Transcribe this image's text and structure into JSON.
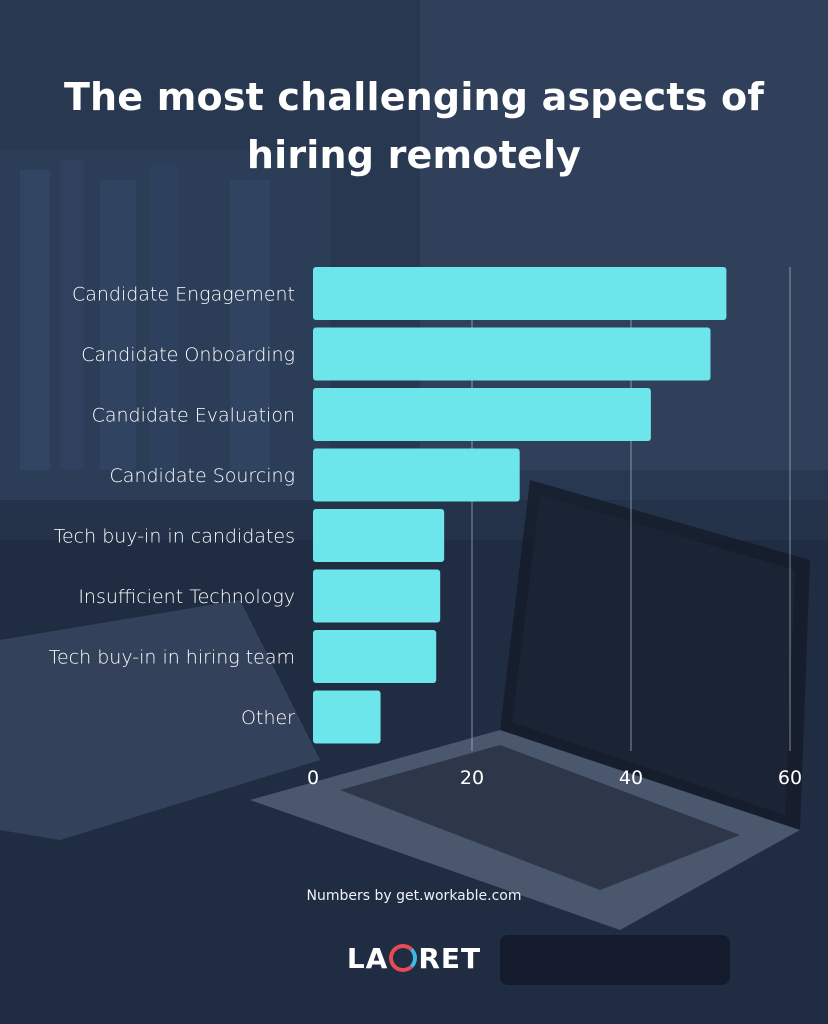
{
  "header": {
    "title_line1": "The most challenging aspects of",
    "title_line2": "hiring remotely"
  },
  "footer": {
    "source": "Numbers by get.workable.com",
    "logo_text": "LAGRET",
    "logo_prefix": "LA",
    "logo_suffix": "RET"
  },
  "colors": {
    "background": "#24324a",
    "bar": "#6ce6ea",
    "text": "#ffffff"
  },
  "chart_data": {
    "type": "bar",
    "orientation": "horizontal",
    "categories": [
      "Candidate Engagement",
      "Candidate Onboarding",
      "Candidate Evaluation",
      "Candidate Sourcing",
      "Tech buy-in in candidates",
      "Insufficient Technology",
      "Tech buy-in in hiring team",
      "Other"
    ],
    "values": [
      52,
      50,
      42.5,
      26,
      16.5,
      16,
      15.5,
      8.5
    ],
    "xlim": [
      0,
      60
    ],
    "xticks": [
      0,
      20,
      40,
      60
    ],
    "grid": true
  }
}
